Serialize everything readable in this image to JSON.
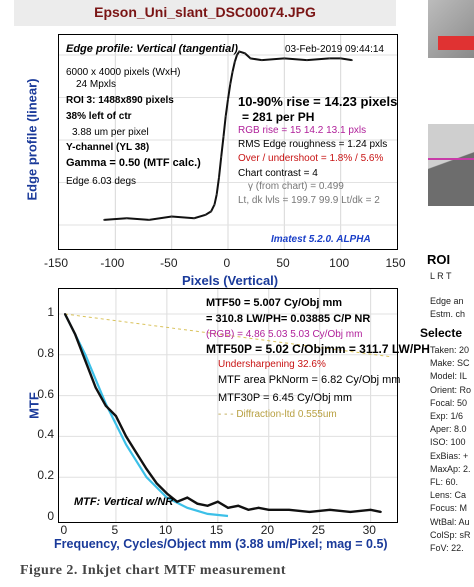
{
  "window_title": "Epson_Uni_slant_DSC00074.JPG",
  "top_panel": {
    "title": "Edge profile: Vertical (tangential)",
    "date": "03-Feb-2019 09:44:14",
    "ylabel": "Edge profile (linear)",
    "xlabel": "Pixels (Vertical)",
    "info": [
      "6000 x 4000 pixels (WxH)",
      "24 Mpxls",
      "ROI 3:  1488x890 pixels",
      "38% left of ctr",
      "3.88 um per pixel",
      "Y-channel  (YL 38)",
      "Gamma = 0.50 (MTF calc.)",
      "Edge  6.03 degs"
    ],
    "rise_line": "10-90% rise = 14.23 pixels",
    "rise_ph": "=   281 per PH",
    "rgb_rise": "RGB rise =   15   14.2   13.1 pxls",
    "rms": "RMS Edge roughness =  1.24 pxls",
    "overshoot": "Over / undershoot =  1.8% / 5.6%",
    "contrast": "Chart contrast = 4",
    "gamma_chart": "γ (from chart) = 0.499",
    "levels": "Lt, dk lvls = 199.7  99.9   Lt/dk = 2",
    "brand": "Imatest 5.2.0. ALPHA",
    "xticks": [
      "-150",
      "-100",
      "-50",
      "0",
      "50",
      "100",
      "150"
    ]
  },
  "bottom_panel": {
    "ylabel": "MTF",
    "xlabel": "Frequency, Cycles/Object mm  (3.88 um/Pixel;  mag = 0.5)",
    "mtf50": "MTF50 = 5.007 Cy/Obj mm",
    "mtf50_lw": "= 310.8 LW/PH= 0.03885 C/P  NR",
    "rgb": "(RGB) = 4.86  5.03  5.03 Cy/Obj mm",
    "mtf50p": "MTF50P = 5.02 C/Objmm = 311.7 LW/PH",
    "undersharpening": "Undersharpening 32.6%",
    "area": "MTF area PkNorm = 6.82 Cy/Obj mm",
    "mtf30p": "MTF30P = 6.45 Cy/Obj mm",
    "diffraction": "- - - Diffraction-ltd  0.555um",
    "label": "MTF: Vertical w/NR",
    "yticks": [
      "0",
      "0.2",
      "0.4",
      "0.6",
      "0.8",
      "1"
    ],
    "xticks": [
      "0",
      "5",
      "10",
      "15",
      "20",
      "25",
      "30"
    ]
  },
  "right_strip": {
    "roi": "ROI",
    "lrt": "L R T",
    "edge": "Edge an",
    "estm": "Estm. ch",
    "selected": "Selecte",
    "meta": [
      "Taken: 20",
      "Make:  SC",
      "Model:  IL",
      "Orient: Ro",
      "Focal:  50",
      "Exp:   1/6",
      "Aper:  8.0",
      "ISO:   100",
      "ExBias: +",
      "MaxAp: 2.",
      "FL:    60.",
      "Lens:  Ca",
      "Focus:  M",
      "WtBal: Au",
      "ColSp: sR",
      "FoV:   22."
    ]
  },
  "caption": "Figure 2. Inkjet chart MTF measurement",
  "colors": {
    "title": "#7a1515",
    "axis_label": "#1a3a9a",
    "mtf_line": "#111111",
    "diffraction": "#d9c25a",
    "model": "#3cc0e8",
    "edge_line": "#111111",
    "brand": "#1a3fc8"
  },
  "chart_data": [
    {
      "type": "line",
      "title": "Edge profile: Vertical (tangential)",
      "xlabel": "Pixels (Vertical)",
      "ylabel": "Edge profile (linear)",
      "xlim": [
        -150,
        150
      ],
      "grid": true,
      "series": [
        {
          "x": [
            -110,
            -90,
            -70,
            -50,
            -30,
            -20,
            -15,
            -12,
            -10,
            -8,
            -6,
            -4,
            -2,
            0,
            2,
            4,
            6,
            8,
            10,
            15,
            20,
            30,
            50,
            70,
            90,
            100,
            110
          ],
          "y": [
            0.03,
            0.04,
            0.03,
            0.05,
            0.04,
            0.06,
            0.08,
            0.12,
            0.18,
            0.28,
            0.4,
            0.52,
            0.64,
            0.74,
            0.83,
            0.9,
            0.96,
            1.0,
            1.02,
            1.01,
            0.98,
            0.97,
            0.98,
            0.97,
            0.98,
            0.98,
            0.97
          ]
        }
      ]
    },
    {
      "type": "line",
      "title": "MTF: Vertical w/NR",
      "xlabel": "Frequency, Cycles/Object mm  (3.88 um/Pixel;  mag = 0.5)",
      "ylabel": "MTF",
      "xlim": [
        0,
        32
      ],
      "ylim": [
        0,
        1.1
      ],
      "grid": true,
      "series": [
        {
          "x": [
            0,
            1,
            2,
            3,
            4,
            5,
            6,
            7,
            8,
            9,
            10,
            11,
            12,
            13,
            14,
            15,
            16,
            17,
            18,
            19,
            20,
            22,
            24,
            26,
            28,
            30,
            31
          ],
          "y": [
            1.0,
            0.9,
            0.77,
            0.64,
            0.55,
            0.5,
            0.4,
            0.32,
            0.24,
            0.17,
            0.12,
            0.08,
            0.1,
            0.07,
            0.06,
            0.08,
            0.05,
            0.06,
            0.04,
            0.05,
            0.04,
            0.04,
            0.03,
            0.04,
            0.03,
            0.04,
            0.03
          ]
        },
        {
          "x": [
            0,
            2,
            4,
            6,
            8,
            10,
            12,
            14,
            16
          ],
          "y": [
            1.0,
            0.8,
            0.56,
            0.36,
            0.2,
            0.1,
            0.05,
            0.02,
            0.01
          ]
        },
        {
          "x": [
            0,
            32
          ],
          "y": [
            1.0,
            0.79
          ]
        }
      ]
    }
  ]
}
